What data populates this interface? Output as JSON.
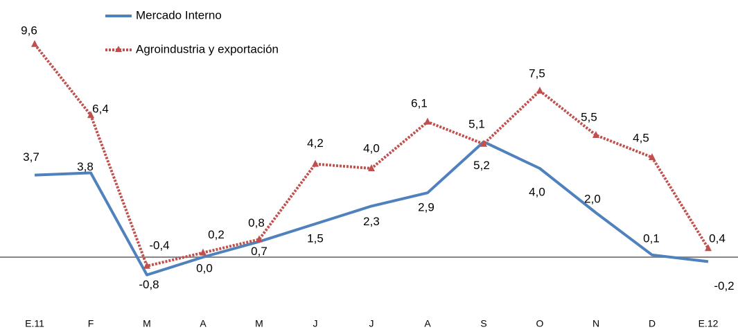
{
  "chart_data": {
    "type": "line",
    "categories": [
      "E.11",
      "F",
      "M",
      "A",
      "M",
      "J",
      "J",
      "A",
      "S",
      "O",
      "N",
      "D",
      "E.12"
    ],
    "series": [
      {
        "name": "Mercado Interno",
        "color": "#4f81bd",
        "values": [
          3.7,
          3.8,
          -0.8,
          0.0,
          0.7,
          1.5,
          2.3,
          2.9,
          5.2,
          4.0,
          2.0,
          0.1,
          -0.2
        ],
        "value_labels": [
          "3,7",
          "3,8",
          "-0,8",
          "0,0",
          "0,7",
          "1,5",
          "2,3",
          "2,9",
          "5,2",
          "4,0",
          "2,0",
          "0,1",
          "-0,2"
        ]
      },
      {
        "name": "Agroindustria y exportación",
        "color": "#c0504d",
        "values": [
          9.6,
          6.4,
          -0.4,
          0.2,
          0.8,
          4.2,
          4.0,
          6.1,
          5.1,
          7.5,
          5.5,
          4.5,
          0.4
        ],
        "value_labels": [
          "9,6",
          "6,4",
          "-0,4",
          "0,2",
          "0,8",
          "4,2",
          "4,0",
          "6,1",
          "5,1",
          "7,5",
          "5,5",
          "4,5",
          "0,4"
        ]
      }
    ],
    "ylim": [
      -1.5,
      10.5
    ]
  }
}
